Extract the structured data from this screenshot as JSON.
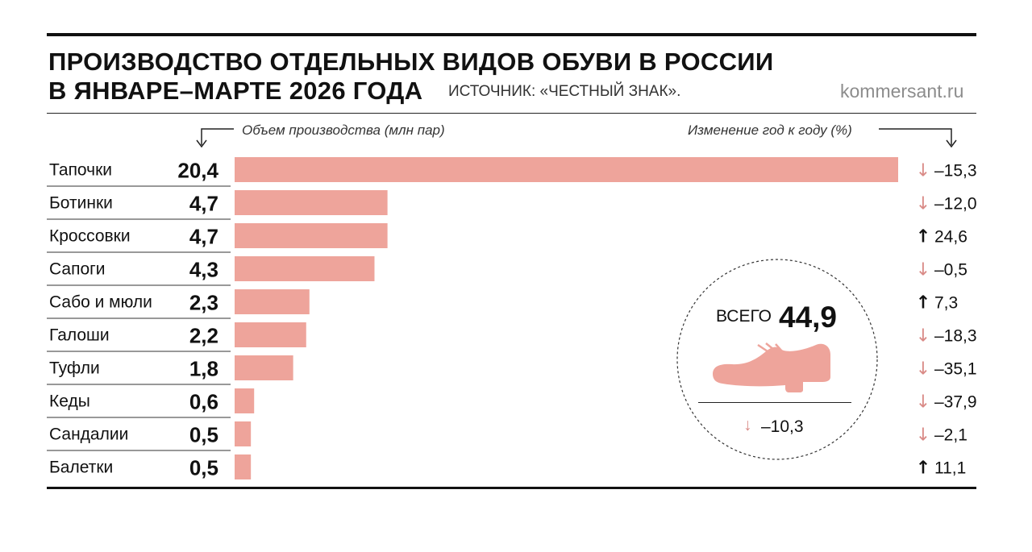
{
  "title_line1": "ПРОИЗВОДСТВО ОТДЕЛЬНЫХ ВИДОВ ОБУВИ В РОССИИ",
  "title_line2": "В ЯНВАРЕ–МАРТЕ 2026 ГОДА",
  "source": "ИСТОЧНИК: «ЧЕСТНЫЙ ЗНАК».",
  "brand": "kommersant.ru",
  "left_header": "Объем производства (млн пар)",
  "right_header": "Изменение год к году (%)",
  "total": {
    "label": "ВСЕГО",
    "value": "44,9",
    "change": "–10,3",
    "direction": "down"
  },
  "colors": {
    "bar": "#eea49b",
    "arrow_down": "#d98a86",
    "arrow_up": "#111111",
    "shoe": "#eea49b"
  },
  "chart_data": {
    "type": "bar",
    "orientation": "horizontal",
    "categories": [
      "Тапочки",
      "Ботинки",
      "Кроссовки",
      "Сапоги",
      "Сабо и мюли",
      "Галоши",
      "Туфли",
      "Кеды",
      "Сандалии",
      "Балетки"
    ],
    "values": [
      20.4,
      4.7,
      4.7,
      4.3,
      2.3,
      2.2,
      1.8,
      0.6,
      0.5,
      0.5
    ],
    "value_labels": [
      "20,4",
      "4,7",
      "4,7",
      "4,3",
      "2,3",
      "2,2",
      "1,8",
      "0,6",
      "0,5",
      "0,5"
    ],
    "changes": [
      "–15,3",
      "–12,0",
      "24,6",
      "–0,5",
      "7,3",
      "–18,3",
      "–35,1",
      "–37,9",
      "–2,1",
      "11,1"
    ],
    "change_directions": [
      "down",
      "down",
      "up",
      "down",
      "up",
      "down",
      "down",
      "down",
      "down",
      "up"
    ],
    "xlabel": "Объем производства (млн пар)",
    "xlim": [
      0,
      20.4
    ],
    "grid": false
  }
}
